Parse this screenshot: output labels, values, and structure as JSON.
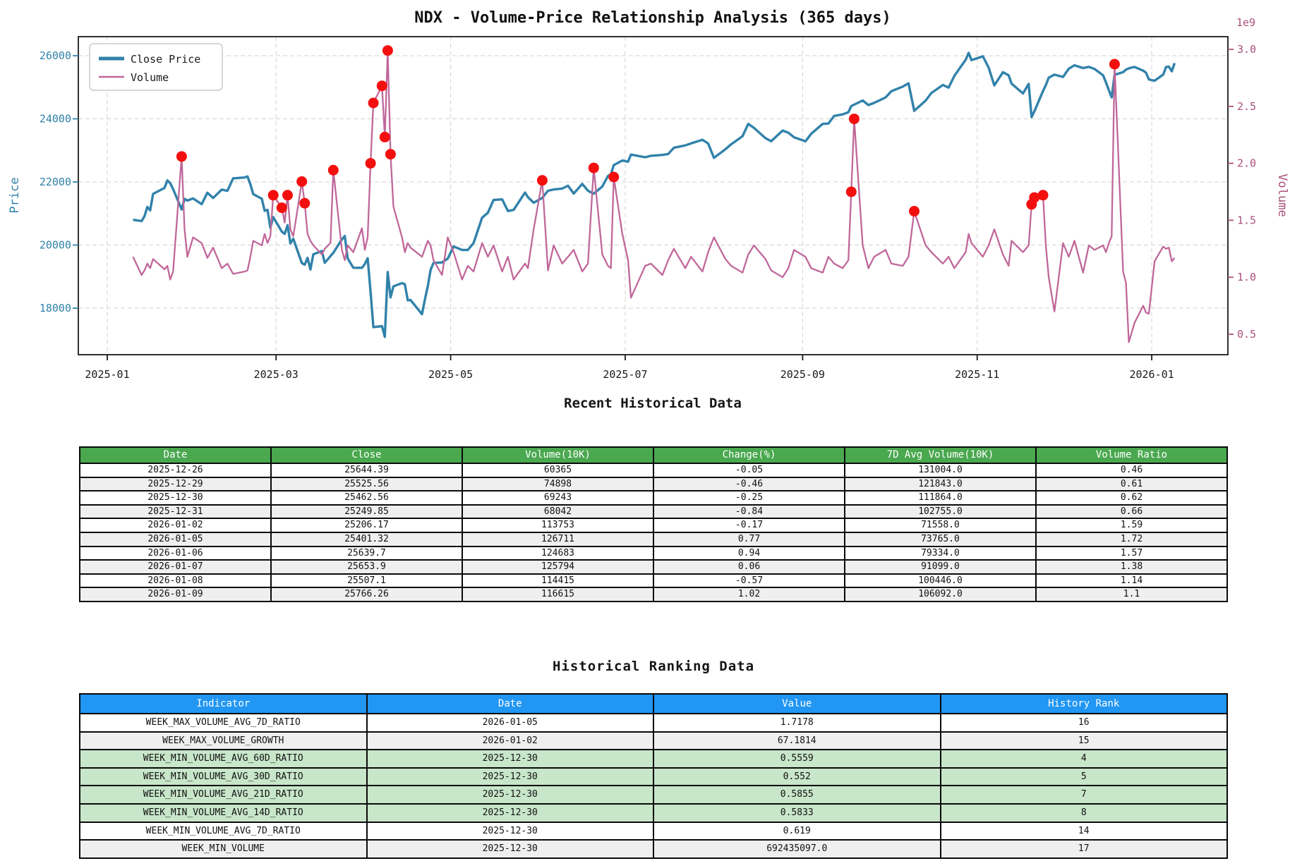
{
  "colors": {
    "price_line": "#3182aa",
    "volume_line": "#c0679a",
    "volume_axis_text": "#a9527c",
    "price_axis_text": "#3182aa",
    "spike_marker": "#f40f0f",
    "grid": "#d9d9d9",
    "spine": "#1a1a1a",
    "table1_header_bg": "#4aa84f",
    "table2_header_bg": "#2196f3",
    "row_gray": "#efefef",
    "row_green": "#c8e6c9"
  },
  "chart_data": {
    "type": "line",
    "title": "NDX - Volume-Price Relationship Analysis (365 days)",
    "xlabel": "Recent Historical Data",
    "ylabel": "Price",
    "y2label": "Volume",
    "y2_offset_label": "1e9",
    "grid": true,
    "legend": {
      "position": "upper-left",
      "entries": [
        "Close Price",
        "Volume"
      ]
    },
    "x_tick_labels": [
      "2025-01",
      "2025-03",
      "2025-05",
      "2025-07",
      "2025-09",
      "2025-11",
      "2026-01"
    ],
    "price_ticks": [
      18000,
      20000,
      22000,
      24000,
      26000
    ],
    "volume_ticks_billions": [
      0.5,
      1.0,
      1.5,
      2.0,
      2.5,
      3.0
    ],
    "price_axis_range": [
      16660,
      26600
    ],
    "volume_axis_range_billions": [
      0.36,
      3.11
    ],
    "series_note": "points are [date, close_price, volume_in_1e9]",
    "points": [
      [
        "2025-01-10",
        20800,
        1.18
      ],
      [
        "2025-01-13",
        20760,
        1.02
      ],
      [
        "2025-01-14",
        20910,
        1.06
      ],
      [
        "2025-01-15",
        21210,
        1.12
      ],
      [
        "2025-01-16",
        21100,
        1.08
      ],
      [
        "2025-01-17",
        21620,
        1.16
      ],
      [
        "2025-01-21",
        21810,
        1.07
      ],
      [
        "2025-01-22",
        22050,
        1.1
      ],
      [
        "2025-01-23",
        21960,
        0.98
      ],
      [
        "2025-01-24",
        21774,
        1.05
      ],
      [
        "2025-01-27",
        21127,
        2.06
      ],
      [
        "2025-01-28",
        21463,
        1.42
      ],
      [
        "2025-01-29",
        21411,
        1.18
      ],
      [
        "2025-01-31",
        21478,
        1.35
      ],
      [
        "2025-02-03",
        21295,
        1.3
      ],
      [
        "2025-02-05",
        21658,
        1.17
      ],
      [
        "2025-02-07",
        21491,
        1.26
      ],
      [
        "2025-02-10",
        21756,
        1.08
      ],
      [
        "2025-02-12",
        21719,
        1.12
      ],
      [
        "2025-02-14",
        22114,
        1.03
      ],
      [
        "2025-02-18",
        22140,
        1.05
      ],
      [
        "2025-02-19",
        22175,
        1.06
      ],
      [
        "2025-02-20",
        21923,
        1.18
      ],
      [
        "2025-02-21",
        21614,
        1.32
      ],
      [
        "2025-02-24",
        21465,
        1.28
      ],
      [
        "2025-02-25",
        21087,
        1.38
      ],
      [
        "2025-02-26",
        21115,
        1.3
      ],
      [
        "2025-02-27",
        20550,
        1.36
      ],
      [
        "2025-02-28",
        20884,
        1.72
      ],
      [
        "2025-03-03",
        20425,
        1.61
      ],
      [
        "2025-03-04",
        20352,
        1.48
      ],
      [
        "2025-03-05",
        20628,
        1.72
      ],
      [
        "2025-03-06",
        20053,
        1.42
      ],
      [
        "2025-03-07",
        20201,
        1.36
      ],
      [
        "2025-03-10",
        19430,
        1.84
      ],
      [
        "2025-03-11",
        19377,
        1.65
      ],
      [
        "2025-03-12",
        19596,
        1.38
      ],
      [
        "2025-03-13",
        19225,
        1.32
      ],
      [
        "2025-03-14",
        19704,
        1.28
      ],
      [
        "2025-03-17",
        19812,
        1.2
      ],
      [
        "2025-03-18",
        19437,
        1.25
      ],
      [
        "2025-03-20",
        19649,
        1.3
      ],
      [
        "2025-03-21",
        19754,
        1.94
      ],
      [
        "2025-03-24",
        20180,
        1.24
      ],
      [
        "2025-03-25",
        20287,
        1.15
      ],
      [
        "2025-03-26",
        19581,
        1.28
      ],
      [
        "2025-03-28",
        19281,
        1.22
      ],
      [
        "2025-03-31",
        19278,
        1.43
      ],
      [
        "2025-04-01",
        19397,
        1.24
      ],
      [
        "2025-04-02",
        19581,
        1.35
      ],
      [
        "2025-04-03",
        18521,
        2.0
      ],
      [
        "2025-04-04",
        17398,
        2.53
      ],
      [
        "2025-04-07",
        17430,
        2.68
      ],
      [
        "2025-04-08",
        17090,
        2.23
      ],
      [
        "2025-04-09",
        19145,
        2.99
      ],
      [
        "2025-04-10",
        18343,
        2.08
      ],
      [
        "2025-04-11",
        18690,
        1.62
      ],
      [
        "2025-04-14",
        18796,
        1.35
      ],
      [
        "2025-04-15",
        18758,
        1.22
      ],
      [
        "2025-04-16",
        18251,
        1.3
      ],
      [
        "2025-04-17",
        18258,
        1.26
      ],
      [
        "2025-04-21",
        17808,
        1.18
      ],
      [
        "2025-04-22",
        18276,
        1.25
      ],
      [
        "2025-04-23",
        18693,
        1.32
      ],
      [
        "2025-04-24",
        19214,
        1.28
      ],
      [
        "2025-04-25",
        19432,
        1.15
      ],
      [
        "2025-04-28",
        19448,
        1.02
      ],
      [
        "2025-04-30",
        19571,
        1.35
      ],
      [
        "2025-05-02",
        19952,
        1.22
      ],
      [
        "2025-05-05",
        19845,
        0.98
      ],
      [
        "2025-05-07",
        19844,
        1.1
      ],
      [
        "2025-05-09",
        20061,
        1.05
      ],
      [
        "2025-05-12",
        20868,
        1.3
      ],
      [
        "2025-05-14",
        21021,
        1.18
      ],
      [
        "2025-05-16",
        21427,
        1.28
      ],
      [
        "2025-05-19",
        21447,
        1.05
      ],
      [
        "2025-05-21",
        21080,
        1.18
      ],
      [
        "2025-05-23",
        21112,
        0.98
      ],
      [
        "2025-05-27",
        21662,
        1.12
      ],
      [
        "2025-05-28",
        21518,
        1.08
      ],
      [
        "2025-05-30",
        21341,
        1.42
      ],
      [
        "2025-06-02",
        21492,
        1.85
      ],
      [
        "2025-06-04",
        21720,
        1.06
      ],
      [
        "2025-06-06",
        21762,
        1.28
      ],
      [
        "2025-06-09",
        21790,
        1.12
      ],
      [
        "2025-06-11",
        21879,
        1.18
      ],
      [
        "2025-06-13",
        21631,
        1.24
      ],
      [
        "2025-06-16",
        21937,
        1.05
      ],
      [
        "2025-06-18",
        21720,
        1.12
      ],
      [
        "2025-06-20",
        21626,
        1.96
      ],
      [
        "2025-06-23",
        21857,
        1.2
      ],
      [
        "2025-06-25",
        22190,
        1.1
      ],
      [
        "2025-06-26",
        22238,
        1.08
      ],
      [
        "2025-06-27",
        22534,
        1.88
      ],
      [
        "2025-06-30",
        22679,
        1.38
      ],
      [
        "2025-07-02",
        22641,
        1.15
      ],
      [
        "2025-07-03",
        22867,
        0.82
      ],
      [
        "2025-07-08",
        22782,
        1.1
      ],
      [
        "2025-07-10",
        22829,
        1.12
      ],
      [
        "2025-07-14",
        22855,
        1.02
      ],
      [
        "2025-07-16",
        22885,
        1.15
      ],
      [
        "2025-07-18",
        23081,
        1.25
      ],
      [
        "2025-07-22",
        23158,
        1.08
      ],
      [
        "2025-07-24",
        23219,
        1.18
      ],
      [
        "2025-07-28",
        23336,
        1.05
      ],
      [
        "2025-07-30",
        23218,
        1.22
      ],
      [
        "2025-08-01",
        22763,
        1.35
      ],
      [
        "2025-08-05",
        23035,
        1.16
      ],
      [
        "2025-08-07",
        23190,
        1.1
      ],
      [
        "2025-08-11",
        23450,
        1.04
      ],
      [
        "2025-08-13",
        23839,
        1.2
      ],
      [
        "2025-08-15",
        23712,
        1.28
      ],
      [
        "2025-08-19",
        23387,
        1.16
      ],
      [
        "2025-08-21",
        23290,
        1.06
      ],
      [
        "2025-08-25",
        23629,
        1.0
      ],
      [
        "2025-08-27",
        23560,
        1.08
      ],
      [
        "2025-08-29",
        23415,
        1.24
      ],
      [
        "2025-09-02",
        23287,
        1.18
      ],
      [
        "2025-09-04",
        23526,
        1.08
      ],
      [
        "2025-09-08",
        23840,
        1.04
      ],
      [
        "2025-09-10",
        23850,
        1.18
      ],
      [
        "2025-09-12",
        24092,
        1.12
      ],
      [
        "2025-09-15",
        24140,
        1.08
      ],
      [
        "2025-09-17",
        24210,
        1.15
      ],
      [
        "2025-09-18",
        24405,
        1.75
      ],
      [
        "2025-09-19",
        24450,
        2.39
      ],
      [
        "2025-09-22",
        24580,
        1.28
      ],
      [
        "2025-09-24",
        24435,
        1.08
      ],
      [
        "2025-09-26",
        24504,
        1.18
      ],
      [
        "2025-09-30",
        24680,
        1.24
      ],
      [
        "2025-10-02",
        24875,
        1.12
      ],
      [
        "2025-10-06",
        25021,
        1.1
      ],
      [
        "2025-10-08",
        25127,
        1.18
      ],
      [
        "2025-10-10",
        24254,
        1.58
      ],
      [
        "2025-10-14",
        24579,
        1.28
      ],
      [
        "2025-10-16",
        24818,
        1.22
      ],
      [
        "2025-10-20",
        25072,
        1.12
      ],
      [
        "2025-10-22",
        24990,
        1.18
      ],
      [
        "2025-10-24",
        25358,
        1.08
      ],
      [
        "2025-10-28",
        25875,
        1.22
      ],
      [
        "2025-10-29",
        26090,
        1.38
      ],
      [
        "2025-10-30",
        25860,
        1.3
      ],
      [
        "2025-11-03",
        25980,
        1.18
      ],
      [
        "2025-11-05",
        25627,
        1.28
      ],
      [
        "2025-11-07",
        25059,
        1.42
      ],
      [
        "2025-11-10",
        25478,
        1.2
      ],
      [
        "2025-11-12",
        25382,
        1.1
      ],
      [
        "2025-11-13",
        25114,
        1.32
      ],
      [
        "2025-11-17",
        24805,
        1.22
      ],
      [
        "2025-11-19",
        25108,
        1.28
      ],
      [
        "2025-11-20",
        24054,
        1.64
      ],
      [
        "2025-11-21",
        24239,
        1.7
      ],
      [
        "2025-11-24",
        24880,
        1.72
      ],
      [
        "2025-11-25",
        25070,
        1.28
      ],
      [
        "2025-11-26",
        25304,
        1.0
      ],
      [
        "2025-11-28",
        25398,
        0.7
      ],
      [
        "2025-12-01",
        25327,
        1.3
      ],
      [
        "2025-12-03",
        25589,
        1.18
      ],
      [
        "2025-12-05",
        25695,
        1.32
      ],
      [
        "2025-12-08",
        25610,
        1.04
      ],
      [
        "2025-12-10",
        25648,
        1.28
      ],
      [
        "2025-12-12",
        25580,
        1.24
      ],
      [
        "2025-12-15",
        25380,
        1.28
      ],
      [
        "2025-12-16",
        25155,
        1.22
      ],
      [
        "2025-12-17",
        24905,
        1.3
      ],
      [
        "2025-12-18",
        24680,
        1.36
      ],
      [
        "2025-12-19",
        25395,
        2.87
      ],
      [
        "2025-12-22",
        25480,
        1.05
      ],
      [
        "2025-12-23",
        25560,
        0.95
      ],
      [
        "2025-12-24",
        25600,
        0.43
      ],
      [
        "2025-12-26",
        25644.39,
        0.6
      ],
      [
        "2025-12-29",
        25525.56,
        0.75
      ],
      [
        "2025-12-30",
        25462.56,
        0.69
      ],
      [
        "2025-12-31",
        25249.85,
        0.68
      ],
      [
        "2026-01-02",
        25206.17,
        1.14
      ],
      [
        "2026-01-05",
        25401.32,
        1.27
      ],
      [
        "2026-01-06",
        25639.7,
        1.25
      ],
      [
        "2026-01-07",
        25653.9,
        1.26
      ],
      [
        "2026-01-08",
        25507.1,
        1.14
      ],
      [
        "2026-01-09",
        25766.26,
        1.17
      ]
    ],
    "volume_spike_markers": [
      [
        "2025-01-27",
        2.06
      ],
      [
        "2025-02-28",
        1.72
      ],
      [
        "2025-03-03",
        1.61
      ],
      [
        "2025-03-05",
        1.72
      ],
      [
        "2025-03-10",
        1.84
      ],
      [
        "2025-03-11",
        1.65
      ],
      [
        "2025-03-21",
        1.94
      ],
      [
        "2025-04-03",
        2.0
      ],
      [
        "2025-04-04",
        2.53
      ],
      [
        "2025-04-07",
        2.68
      ],
      [
        "2025-04-08",
        2.23
      ],
      [
        "2025-04-09",
        2.99
      ],
      [
        "2025-04-10",
        2.08
      ],
      [
        "2025-06-02",
        1.85
      ],
      [
        "2025-06-20",
        1.96
      ],
      [
        "2025-06-27",
        1.88
      ],
      [
        "2025-09-18",
        1.75
      ],
      [
        "2025-09-19",
        2.39
      ],
      [
        "2025-10-10",
        1.58
      ],
      [
        "2025-11-20",
        1.64
      ],
      [
        "2025-11-21",
        1.7
      ],
      [
        "2025-11-24",
        1.72
      ],
      [
        "2025-12-19",
        2.87
      ]
    ]
  },
  "recent_table": {
    "header": [
      "Date",
      "Close",
      "Volume(10K)",
      "Change(%)",
      "7D Avg Volume(10K)",
      "Volume Ratio"
    ],
    "rows": [
      [
        "2025-12-26",
        "25644.39",
        "60365",
        "-0.05",
        "131004.0",
        "0.46"
      ],
      [
        "2025-12-29",
        "25525.56",
        "74898",
        "-0.46",
        "121843.0",
        "0.61"
      ],
      [
        "2025-12-30",
        "25462.56",
        "69243",
        "-0.25",
        "111864.0",
        "0.62"
      ],
      [
        "2025-12-31",
        "25249.85",
        "68042",
        "-0.84",
        "102755.0",
        "0.66"
      ],
      [
        "2026-01-02",
        "25206.17",
        "113753",
        "-0.17",
        "71558.0",
        "1.59"
      ],
      [
        "2026-01-05",
        "25401.32",
        "126711",
        "0.77",
        "73765.0",
        "1.72"
      ],
      [
        "2026-01-06",
        "25639.7",
        "124683",
        "0.94",
        "79334.0",
        "1.57"
      ],
      [
        "2026-01-07",
        "25653.9",
        "125794",
        "0.06",
        "91099.0",
        "1.38"
      ],
      [
        "2026-01-08",
        "25507.1",
        "114415",
        "-0.57",
        "100446.0",
        "1.14"
      ],
      [
        "2026-01-09",
        "25766.26",
        "116615",
        "1.02",
        "106092.0",
        "1.1"
      ]
    ]
  },
  "ranking": {
    "title": "Historical Ranking Data",
    "header": [
      "Indicator",
      "Date",
      "Value",
      "History Rank"
    ],
    "rows": [
      [
        "WEEK_MAX_VOLUME_AVG_7D_RATIO",
        "2026-01-05",
        "1.7178",
        "16"
      ],
      [
        "WEEK_MAX_VOLUME_GROWTH",
        "2026-01-02",
        "67.1814",
        "15"
      ],
      [
        "WEEK_MIN_VOLUME_AVG_60D_RATIO",
        "2025-12-30",
        "0.5559",
        "4"
      ],
      [
        "WEEK_MIN_VOLUME_AVG_30D_RATIO",
        "2025-12-30",
        "0.552",
        "5"
      ],
      [
        "WEEK_MIN_VOLUME_AVG_21D_RATIO",
        "2025-12-30",
        "0.5855",
        "7"
      ],
      [
        "WEEK_MIN_VOLUME_AVG_14D_RATIO",
        "2025-12-30",
        "0.5833",
        "8"
      ],
      [
        "WEEK_MIN_VOLUME_AVG_7D_RATIO",
        "2025-12-30",
        "0.619",
        "14"
      ],
      [
        "WEEK_MIN_VOLUME",
        "2025-12-30",
        "692435097.0",
        "17"
      ]
    ],
    "row_colors": [
      "white",
      "gray",
      "green",
      "green",
      "green",
      "green",
      "white",
      "gray"
    ]
  }
}
